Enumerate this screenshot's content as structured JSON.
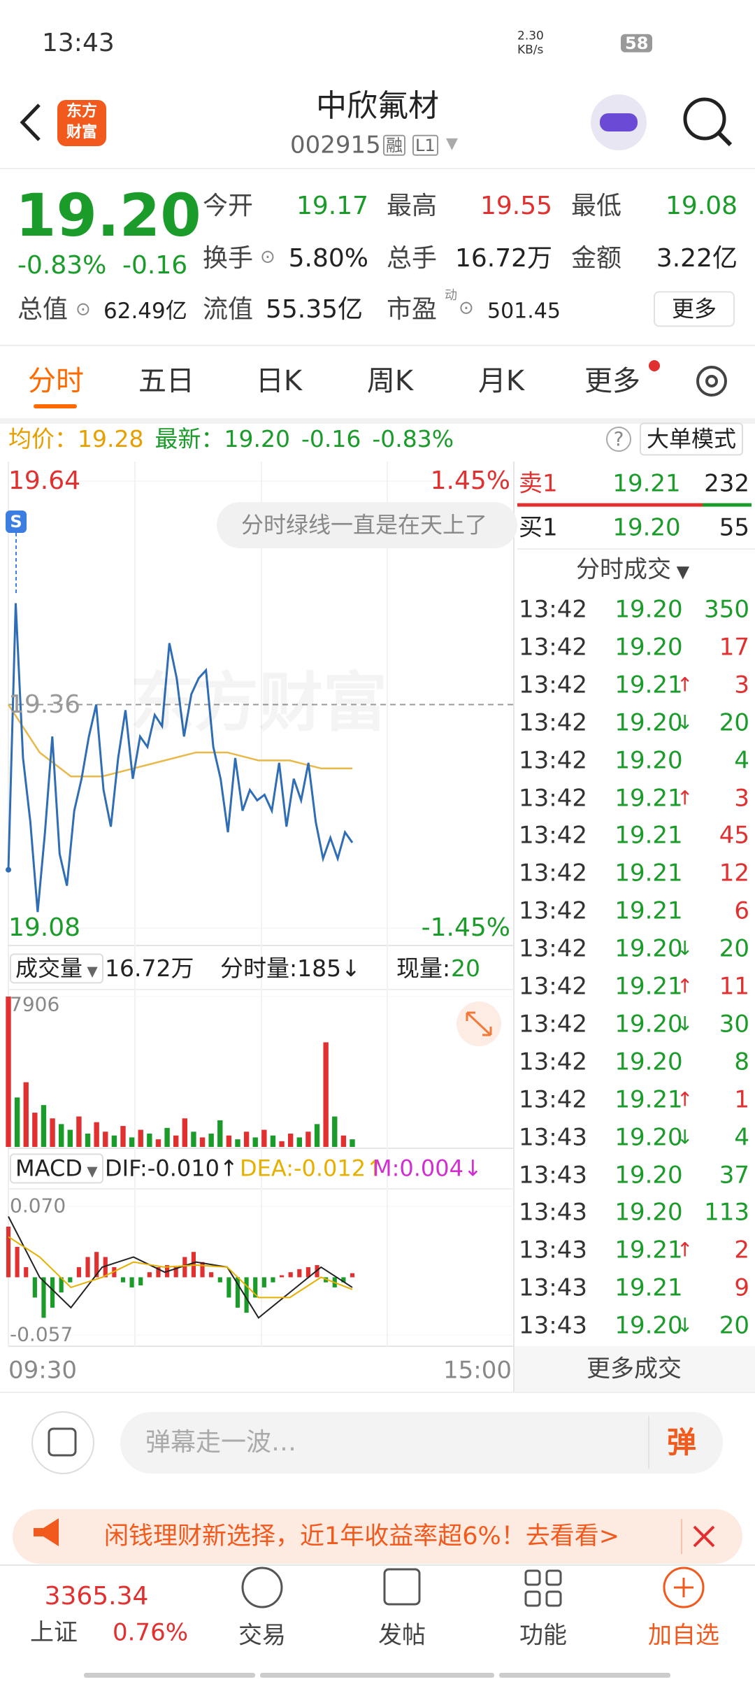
{
  "status_bar": {
    "time": "13:43",
    "net_speed": "2.30",
    "net_unit": "KB/s",
    "battery": "58"
  },
  "header": {
    "logo_top": "东方",
    "logo_bottom": "财富",
    "title": "中欣氟材",
    "code": "002915",
    "badges": [
      "融",
      "L1"
    ]
  },
  "quote": {
    "price": "19.20",
    "change_pct": "-0.83%",
    "change": "-0.16",
    "total_value_label": "总值",
    "total_value": "62.49亿",
    "fields": [
      [
        "今开",
        "19.17"
      ],
      [
        "最高",
        "19.55"
      ],
      [
        "最低",
        "19.08"
      ],
      [
        "换手",
        "5.80%"
      ],
      [
        "总手",
        "16.72万"
      ],
      [
        "金额",
        "3.22亿"
      ],
      [
        "流值",
        "55.35亿"
      ],
      [
        "市盈",
        "501.45"
      ]
    ],
    "pe_sup": "动",
    "more": "更多"
  },
  "tabs": [
    "分时",
    "五日",
    "日K",
    "周K",
    "月K",
    "更多"
  ],
  "info_bar": {
    "avg_label": "均价：",
    "avg": "19.28",
    "last_label": "最新：",
    "last": "19.20",
    "change": "-0.16",
    "change_pct": "-0.83%",
    "big_order": "大单模式"
  },
  "chart": {
    "type": "line",
    "ylim": [
      19.08,
      19.64
    ],
    "yticks": [
      19.08,
      19.36,
      19.64
    ],
    "pct_top": "1.45%",
    "pct_bottom": "-1.45%",
    "watermark": "东方财富",
    "bubble": "分时绿线一直是在天上了",
    "badge": "S",
    "price": [
      19.153,
      19.487,
      19.293,
      19.213,
      19.1,
      19.2,
      19.32,
      19.173,
      19.133,
      19.227,
      19.267,
      19.32,
      19.36,
      19.253,
      19.207,
      19.293,
      19.353,
      19.267,
      19.32,
      19.307,
      19.347,
      19.333,
      19.437,
      19.393,
      19.32,
      19.373,
      19.393,
      19.403,
      19.307,
      19.267,
      19.2,
      19.293,
      19.227,
      19.253,
      19.24,
      19.247,
      19.227,
      19.287,
      19.207,
      19.267,
      19.24,
      19.287,
      19.213,
      19.167,
      19.193,
      19.167,
      19.2,
      19.187
    ],
    "price_color": "#2f6db5",
    "avg": [
      19.36,
      19.3,
      19.27,
      19.27,
      19.28,
      19.29,
      19.3,
      19.3,
      19.29,
      19.29,
      19.28,
      19.28
    ],
    "avg_color": "#e8b84a",
    "start": "09:30",
    "end": "15:00"
  },
  "volume": {
    "label": "成交量",
    "total": "16.72万",
    "minute_label": "分时量:185↓",
    "now_label": "现量:",
    "now": "20",
    "ylim": [
      0,
      7906
    ],
    "yticks": [
      7906
    ],
    "values": [
      7906,
      2600,
      3400,
      1800,
      2200,
      1500,
      1200,
      900,
      1600,
      700,
      1300,
      800,
      600,
      1100,
      500,
      900,
      700,
      400,
      1000,
      600,
      1500,
      800,
      500,
      700,
      1400,
      600,
      400,
      800,
      500,
      900,
      600,
      300,
      700,
      500,
      800,
      1200,
      5500,
      1600,
      600,
      400
    ],
    "colors": [
      "#e0302f",
      "#1a9b2a",
      "#e0302f",
      "#e0302f",
      "#1a9b2a",
      "#e0302f",
      "#1a9b2a",
      "#1a9b2a",
      "#e0302f",
      "#1a9b2a",
      "#e0302f",
      "#e0302f",
      "#1a9b2a",
      "#e0302f",
      "#1a9b2a",
      "#e0302f",
      "#1a9b2a",
      "#e0302f",
      "#1a9b2a",
      "#e0302f",
      "#e0302f",
      "#1a9b2a",
      "#e0302f",
      "#1a9b2a",
      "#1a9b2a",
      "#e0302f",
      "#1a9b2a",
      "#e0302f",
      "#1a9b2a",
      "#e0302f",
      "#1a9b2a",
      "#e0302f",
      "#e0302f",
      "#1a9b2a",
      "#e0302f",
      "#1a9b2a",
      "#e0302f",
      "#1a9b2a",
      "#e0302f",
      "#1a9b2a"
    ]
  },
  "macd": {
    "label": "MACD",
    "dif": "DIF:-0.010↑",
    "dea": "DEA:-0.012↑",
    "m": "M:0.004↓",
    "ylim": [
      -0.057,
      0.07
    ],
    "yticks": [
      -0.057,
      {
        "value": 0.07,
        "label": "0.070"
      }
    ],
    "hist": [
      0.05,
      0.03,
      0.01,
      -0.02,
      -0.04,
      -0.03,
      -0.015,
      -0.005,
      0.01,
      0.02,
      0.025,
      0.02,
      0.01,
      -0.005,
      -0.01,
      -0.008,
      0.005,
      0.01,
      0.012,
      0.01,
      0.02,
      0.025,
      0.015,
      0.005,
      -0.005,
      -0.02,
      -0.03,
      -0.035,
      -0.02,
      -0.01,
      -0.005,
      0.002,
      0.005,
      0.008,
      0.01,
      0.012,
      -0.005,
      -0.01,
      -0.005,
      0.004
    ],
    "dif_line": [
      0.06,
      0.0,
      -0.03,
      0.01,
      0.02,
      0.005,
      0.015,
      0.01,
      -0.04,
      -0.015,
      0.01,
      -0.01
    ],
    "dea_line": [
      0.04,
      0.02,
      -0.01,
      0.0,
      0.015,
      0.01,
      0.012,
      0.01,
      -0.02,
      -0.02,
      0.0,
      -0.012
    ]
  },
  "order_book": {
    "sell": [
      "卖1",
      "19.21",
      "232"
    ],
    "buy": [
      "买1",
      "19.20",
      "55"
    ]
  },
  "trades_title": "分时成交",
  "trades": [
    {
      "time": "13:42",
      "price": "19.20",
      "volume": "350",
      "color": "#1a9b2a"
    },
    {
      "time": "13:42",
      "price": "19.20",
      "volume": "17",
      "color": "#e0302f"
    },
    {
      "time": "13:42",
      "price": "19.21",
      "arrow": "↑",
      "volume": "3",
      "color": "#e0302f"
    },
    {
      "time": "13:42",
      "price": "19.20",
      "arrow": "↓",
      "volume": "20",
      "color": "#1a9b2a"
    },
    {
      "time": "13:42",
      "price": "19.20",
      "volume": "4",
      "color": "#1a9b2a"
    },
    {
      "time": "13:42",
      "price": "19.21",
      "arrow": "↑",
      "volume": "3",
      "color": "#e0302f"
    },
    {
      "time": "13:42",
      "price": "19.21",
      "volume": "45",
      "color": "#e0302f"
    },
    {
      "time": "13:42",
      "price": "19.21",
      "volume": "12",
      "color": "#e0302f"
    },
    {
      "time": "13:42",
      "price": "19.21",
      "volume": "6",
      "color": "#e0302f"
    },
    {
      "time": "13:42",
      "price": "19.20",
      "arrow": "↓",
      "volume": "20",
      "color": "#1a9b2a"
    },
    {
      "time": "13:42",
      "price": "19.21",
      "arrow": "↑",
      "volume": "11",
      "color": "#e0302f"
    },
    {
      "time": "13:42",
      "price": "19.20",
      "arrow": "↓",
      "volume": "30",
      "color": "#1a9b2a"
    },
    {
      "time": "13:42",
      "price": "19.20",
      "volume": "8",
      "color": "#1a9b2a"
    },
    {
      "time": "13:42",
      "price": "19.21",
      "arrow": "↑",
      "volume": "1",
      "color": "#e0302f"
    },
    {
      "time": "13:43",
      "price": "19.20",
      "arrow": "↓",
      "volume": "4",
      "color": "#1a9b2a"
    },
    {
      "time": "13:43",
      "price": "19.20",
      "volume": "37",
      "color": "#1a9b2a"
    },
    {
      "time": "13:43",
      "price": "19.20",
      "volume": "113",
      "color": "#1a9b2a"
    },
    {
      "time": "13:43",
      "price": "19.21",
      "arrow": "↑",
      "volume": "2",
      "color": "#e0302f"
    },
    {
      "time": "13:43",
      "price": "19.21",
      "volume": "9",
      "color": "#e0302f"
    },
    {
      "time": "13:43",
      "price": "19.20",
      "arrow": "↓",
      "volume": "20",
      "color": "#1a9b2a"
    }
  ],
  "more_trades": "更多成交",
  "comment": {
    "placeholder": "弹幕走一波…",
    "button": "弹"
  },
  "ad": {
    "text": "闲钱理财新选择，近1年收益率超6%！去看看>"
  },
  "bottom_nav": {
    "index_name": "上证",
    "index_value": "3365.34",
    "index_change": "0.76%",
    "items": [
      "交易",
      "发帖",
      "功能",
      "加自选"
    ]
  }
}
